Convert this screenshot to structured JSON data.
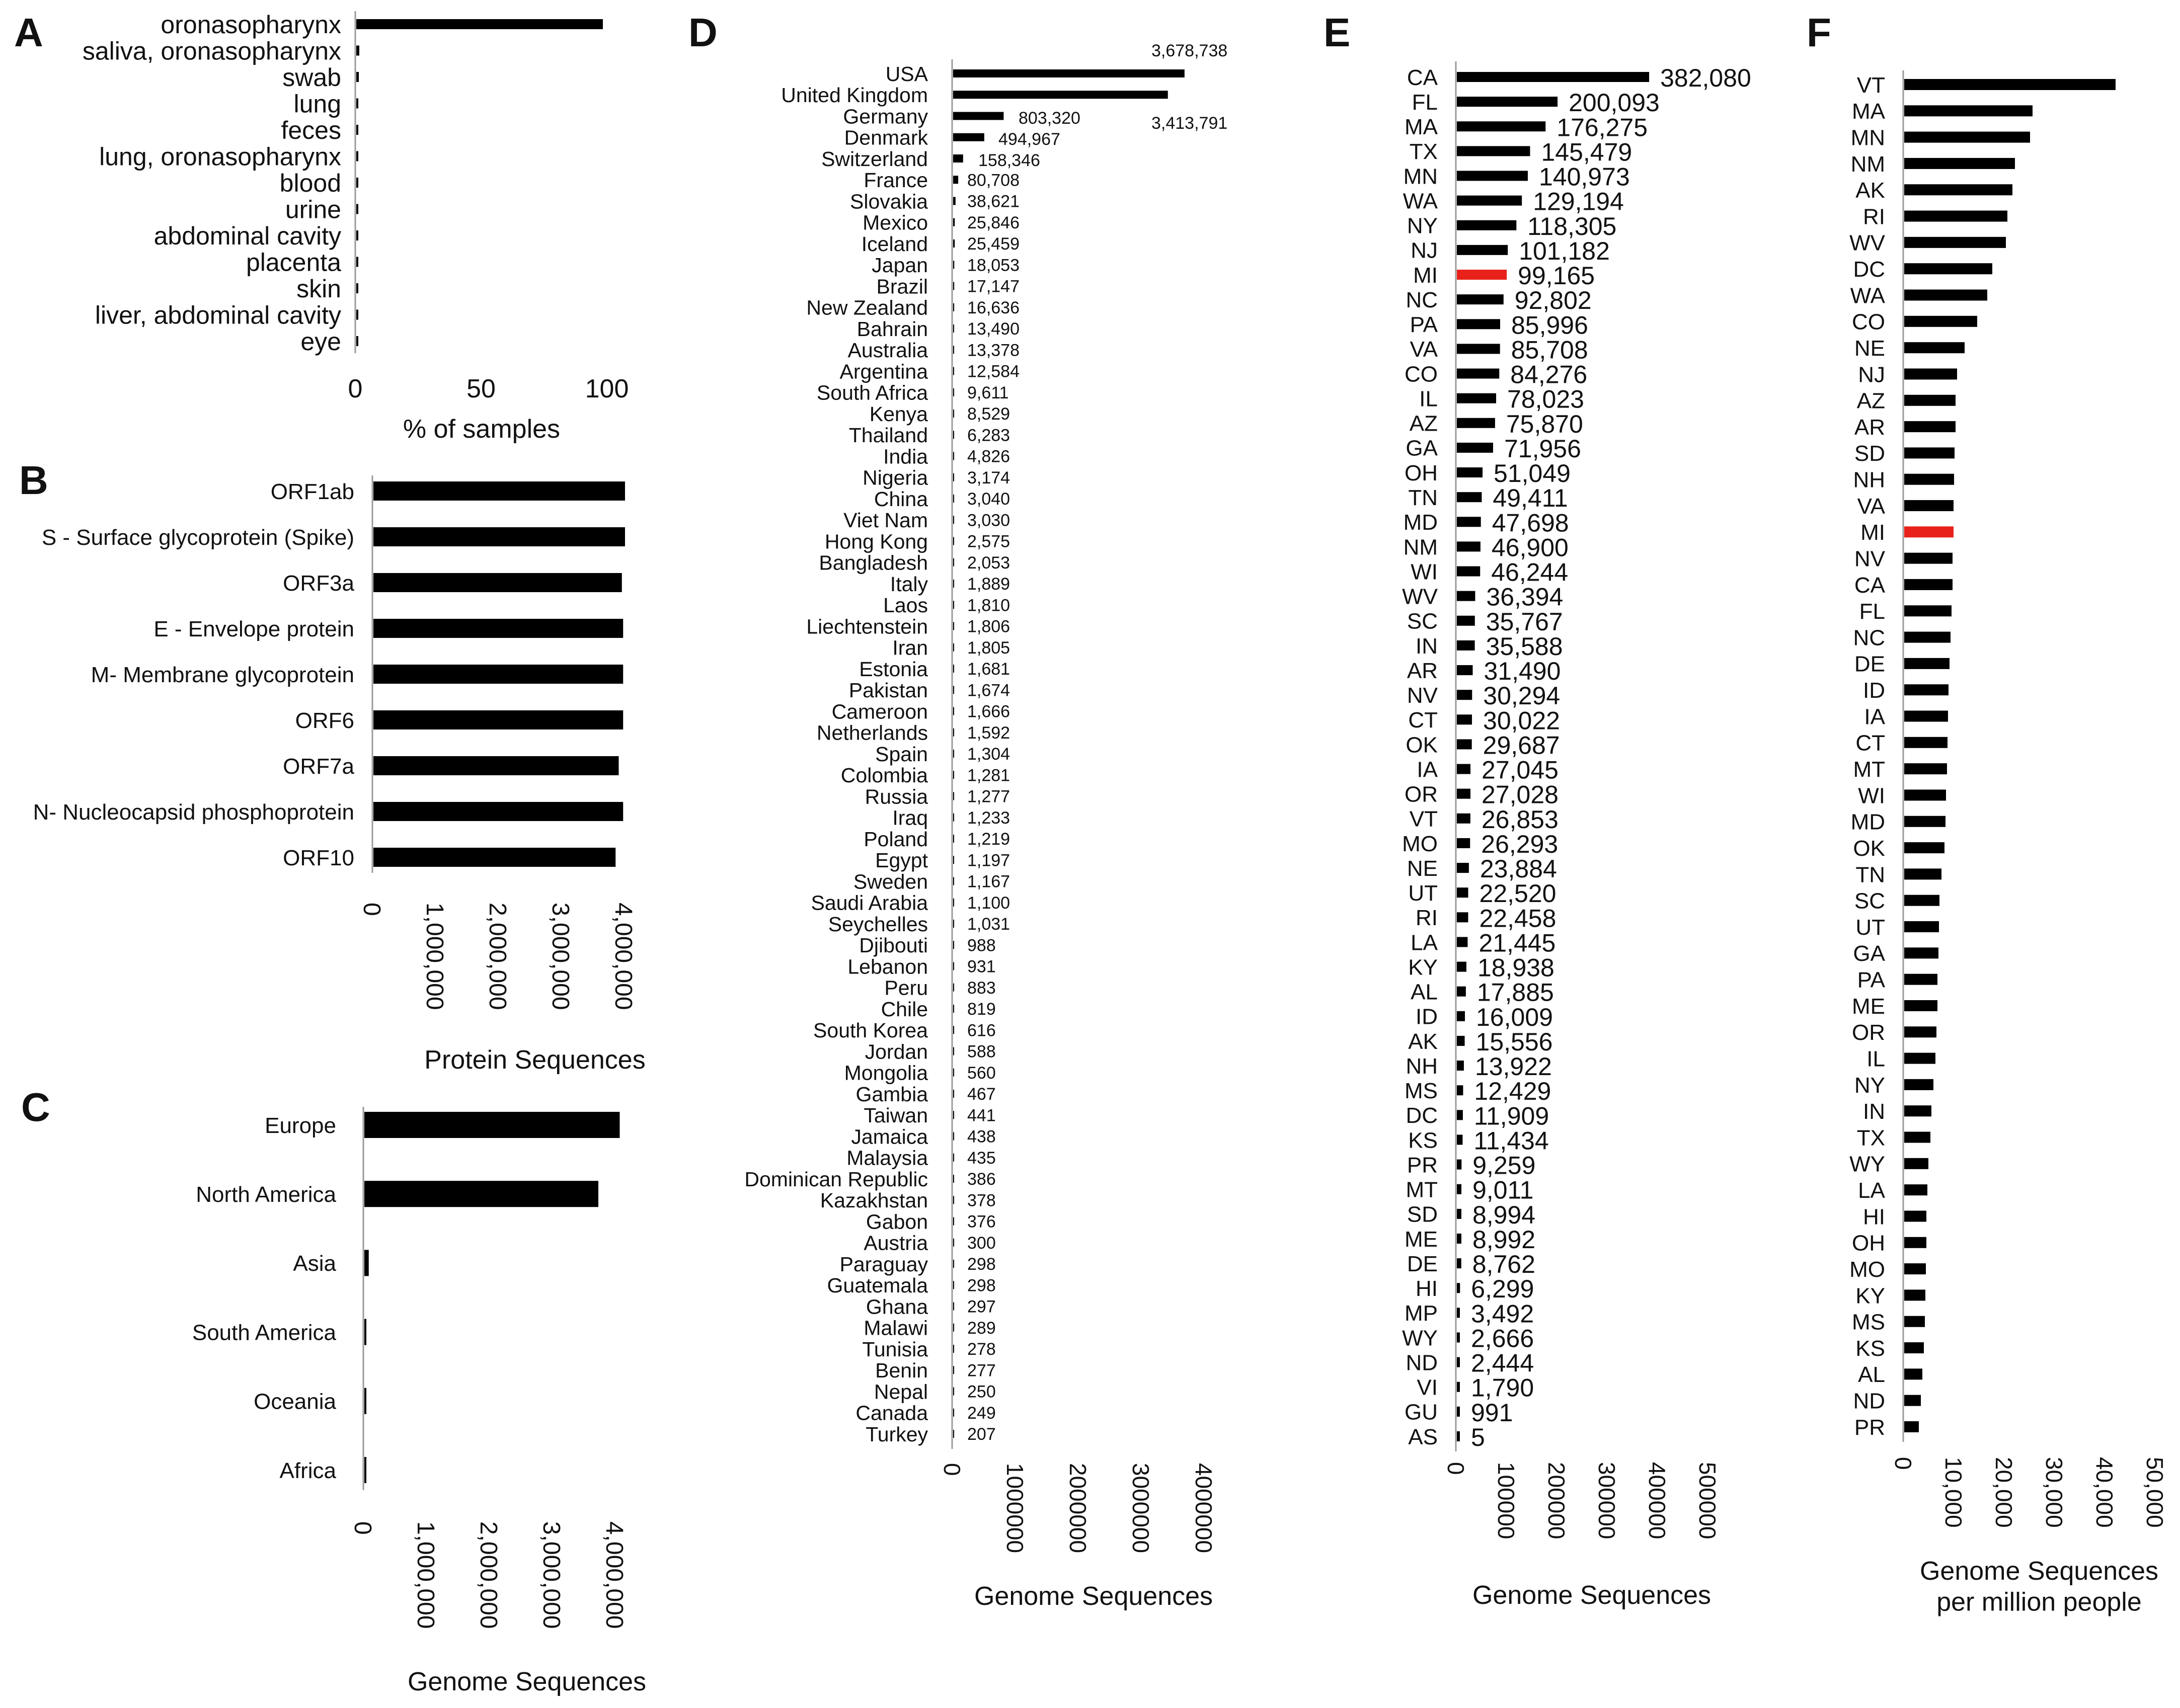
{
  "panels": {
    "A": {
      "letter": "A",
      "chart_data": {
        "type": "bar",
        "orientation": "horizontal",
        "categories": [
          "oronasopharynx",
          "saliva, oronasopharynx",
          "swab",
          "lung",
          "feces",
          "lung, oronasopharynx",
          "blood",
          "urine",
          "abdominal cavity",
          "placenta",
          "skin",
          "liver, abdominal cavity",
          "eye"
        ],
        "values": [
          98,
          1.2,
          1,
          0.1,
          0.1,
          0.1,
          0.05,
          0.05,
          0.03,
          0.03,
          0.02,
          0.02,
          0.01
        ],
        "xlim": [
          0,
          100
        ],
        "ticks": [
          0,
          50,
          100
        ],
        "tick_labels": [
          "0",
          "50",
          "100"
        ],
        "xlabel": "% of samples"
      }
    },
    "B": {
      "letter": "B",
      "chart_data": {
        "type": "bar",
        "orientation": "horizontal",
        "categories": [
          "ORF1ab",
          "S - Surface glycoprotein (Spike)",
          "ORF3a",
          "E - Envelope protein",
          "M- Membrane glycoprotein",
          "ORF6",
          "ORF7a",
          "N- Nucleocapsid phosphoprotein",
          "ORF10"
        ],
        "values": [
          4000000,
          4000000,
          3950000,
          3970000,
          3970000,
          3970000,
          3900000,
          3970000,
          3850000
        ],
        "xlim": [
          0,
          4000000
        ],
        "ticks": [
          0,
          1000000,
          2000000,
          3000000,
          4000000
        ],
        "tick_labels": [
          "0",
          "1,000,000",
          "2,000,000",
          "3,000,000",
          "4,000,000"
        ],
        "xlabel": "Protein Sequences"
      }
    },
    "C": {
      "letter": "C",
      "chart_data": {
        "type": "bar",
        "orientation": "horizontal",
        "categories": [
          "Europe",
          "North America",
          "Asia",
          "South America",
          "Oceania",
          "Africa"
        ],
        "values": [
          4060000,
          3720000,
          70000,
          30000,
          30000,
          20000
        ],
        "xlim": [
          0,
          4000000
        ],
        "ticks": [
          0,
          1000000,
          2000000,
          3000000,
          4000000
        ],
        "tick_labels": [
          "0",
          "1,000,000",
          "2,000,000",
          "3,000,000",
          "4,000,000"
        ],
        "xlabel": "Genome Sequences"
      }
    },
    "D": {
      "letter": "D",
      "chart_data": {
        "type": "bar",
        "orientation": "horizontal",
        "categories": [
          "USA",
          "United Kingdom",
          "Germany",
          "Denmark",
          "Switzerland",
          "France",
          "Slovakia",
          "Mexico",
          "Iceland",
          "Japan",
          "Brazil",
          "New Zealand",
          "Bahrain",
          "Australia",
          "Argentina",
          "South Africa",
          "Kenya",
          "Thailand",
          "India",
          "Nigeria",
          "China",
          "Viet Nam",
          "Hong Kong",
          "Bangladesh",
          "Italy",
          "Laos",
          "Liechtenstein",
          "Iran",
          "Estonia",
          "Pakistan",
          "Cameroon",
          "Netherlands",
          "Spain",
          "Colombia",
          "Russia",
          "Iraq",
          "Poland",
          "Egypt",
          "Sweden",
          "Saudi Arabia",
          "Seychelles",
          "Djibouti",
          "Lebanon",
          "Peru",
          "Chile",
          "South Korea",
          "Jordan",
          "Mongolia",
          "Gambia",
          "Taiwan",
          "Jamaica",
          "Malaysia",
          "Dominican Republic",
          "Kazakhstan",
          "Gabon",
          "Austria",
          "Paraguay",
          "Guatemala",
          "Ghana",
          "Malawi",
          "Tunisia",
          "Benin",
          "Nepal",
          "Canada",
          "Turkey"
        ],
        "values": [
          3678738,
          3413791,
          803320,
          494967,
          158346,
          80708,
          38621,
          25846,
          25459,
          18053,
          17147,
          16636,
          13490,
          13378,
          12584,
          9611,
          8529,
          6283,
          4826,
          3174,
          3040,
          3030,
          2575,
          2053,
          1889,
          1810,
          1806,
          1805,
          1681,
          1674,
          1666,
          1592,
          1304,
          1281,
          1277,
          1233,
          1219,
          1197,
          1167,
          1100,
          1031,
          988,
          931,
          883,
          819,
          616,
          588,
          560,
          467,
          441,
          438,
          435,
          386,
          378,
          376,
          300,
          298,
          298,
          297,
          289,
          278,
          277,
          250,
          249,
          207
        ],
        "value_labels": [
          "3,678,738",
          "3,413,791",
          "803,320",
          "494,967",
          "158,346",
          "80,708",
          "38,621",
          "25,846",
          "25,459",
          "18,053",
          "17,147",
          "16,636",
          "13,490",
          "13,378",
          "12,584",
          "9,611",
          "8,529",
          "6,283",
          "4,826",
          "3,174",
          "3,040",
          "3,030",
          "2,575",
          "2,053",
          "1,889",
          "1,810",
          "1,806",
          "1,805",
          "1,681",
          "1,674",
          "1,666",
          "1,592",
          "1,304",
          "1,281",
          "1,277",
          "1,233",
          "1,219",
          "1,197",
          "1,167",
          "1,100",
          "1,031",
          "988",
          "931",
          "883",
          "819",
          "616",
          "588",
          "560",
          "467",
          "441",
          "438",
          "435",
          "386",
          "378",
          "376",
          "300",
          "298",
          "298",
          "297",
          "289",
          "278",
          "277",
          "250",
          "249",
          "207"
        ],
        "xlim": [
          0,
          4000000
        ],
        "ticks": [
          0,
          1000000,
          2000000,
          3000000,
          4000000
        ],
        "tick_labels": [
          "0",
          "1000000",
          "2000000",
          "3000000",
          "4000000"
        ],
        "xlabel": "Genome Sequences"
      }
    },
    "E": {
      "letter": "E",
      "chart_data": {
        "type": "bar",
        "orientation": "horizontal",
        "categories": [
          "CA",
          "FL",
          "MA",
          "TX",
          "MN",
          "WA",
          "NY",
          "NJ",
          "MI",
          "NC",
          "PA",
          "VA",
          "CO",
          "IL",
          "AZ",
          "GA",
          "OH",
          "TN",
          "MD",
          "NM",
          "WI",
          "WV",
          "SC",
          "IN",
          "AR",
          "NV",
          "CT",
          "OK",
          "IA",
          "OR",
          "VT",
          "MO",
          "NE",
          "UT",
          "RI",
          "LA",
          "KY",
          "AL",
          "ID",
          "AK",
          "NH",
          "MS",
          "DC",
          "KS",
          "PR",
          "MT",
          "SD",
          "ME",
          "DE",
          "HI",
          "MP",
          "WY",
          "ND",
          "VI",
          "GU",
          "AS"
        ],
        "values": [
          382080,
          200093,
          176275,
          145479,
          140973,
          129194,
          118305,
          101182,
          99165,
          92802,
          85996,
          85708,
          84276,
          78023,
          75870,
          71956,
          51049,
          49411,
          47698,
          46900,
          46244,
          36394,
          35767,
          35588,
          31490,
          30294,
          30022,
          29687,
          27045,
          27028,
          26853,
          26293,
          23884,
          22520,
          22458,
          21445,
          18938,
          17885,
          16009,
          15556,
          13922,
          12429,
          11909,
          11434,
          9259,
          9011,
          8994,
          8992,
          8762,
          6299,
          3492,
          2666,
          2444,
          1790,
          991,
          5
        ],
        "value_labels": [
          "382,080",
          "200,093",
          "176,275",
          "145,479",
          "140,973",
          "129,194",
          "118,305",
          "101,182",
          "99,165",
          "92,802",
          "85,996",
          "85,708",
          "84,276",
          "78,023",
          "75,870",
          "71,956",
          "51,049",
          "49,411",
          "47,698",
          "46,900",
          "46,244",
          "36,394",
          "35,767",
          "35,588",
          "31,490",
          "30,294",
          "30,022",
          "29,687",
          "27,045",
          "27,028",
          "26,853",
          "26,293",
          "23,884",
          "22,520",
          "22,458",
          "21,445",
          "18,938",
          "17,885",
          "16,009",
          "15,556",
          "13,922",
          "12,429",
          "11,909",
          "11,434",
          "9,259",
          "9,011",
          "8,994",
          "8,992",
          "8,762",
          "6,299",
          "3,492",
          "2,666",
          "2,444",
          "1,790",
          "991",
          "5"
        ],
        "highlight": "MI",
        "highlight_color": "#e8221b",
        "xlim": [
          0,
          500000
        ],
        "ticks": [
          0,
          100000,
          200000,
          300000,
          400000,
          500000
        ],
        "tick_labels": [
          "0",
          "100000",
          "200000",
          "300000",
          "400000",
          "500000"
        ],
        "xlabel": "Genome Sequences"
      }
    },
    "F": {
      "letter": "F",
      "chart_data": {
        "type": "bar",
        "orientation": "horizontal",
        "categories": [
          "VT",
          "MA",
          "MN",
          "NM",
          "AK",
          "RI",
          "WV",
          "DC",
          "WA",
          "CO",
          "NE",
          "NJ",
          "AZ",
          "AR",
          "SD",
          "NH",
          "VA",
          "MI",
          "NV",
          "CA",
          "FL",
          "NC",
          "DE",
          "ID",
          "IA",
          "CT",
          "MT",
          "WI",
          "MD",
          "OK",
          "TN",
          "SC",
          "UT",
          "GA",
          "PA",
          "ME",
          "OR",
          "IL",
          "NY",
          "IN",
          "TX",
          "WY",
          "LA",
          "HI",
          "OH",
          "MO",
          "KY",
          "MS",
          "KS",
          "AL",
          "ND",
          "PR"
        ],
        "values": [
          42000,
          25500,
          25000,
          22000,
          21500,
          20500,
          20200,
          17500,
          16500,
          14500,
          12000,
          10500,
          10200,
          10200,
          10000,
          9900,
          9800,
          9800,
          9600,
          9600,
          9400,
          9200,
          9000,
          8800,
          8700,
          8600,
          8500,
          8300,
          8200,
          8000,
          7400,
          7000,
          6900,
          6800,
          6600,
          6600,
          6400,
          6200,
          5800,
          5400,
          5200,
          4800,
          4600,
          4400,
          4400,
          4300,
          4200,
          4100,
          3900,
          3600,
          3300,
          2900
        ],
        "highlight": "MI",
        "highlight_color": "#e8221b",
        "xlim": [
          0,
          50000
        ],
        "ticks": [
          0,
          10000,
          20000,
          30000,
          40000,
          50000
        ],
        "tick_labels": [
          "0",
          "10,000",
          "20,000",
          "30,000",
          "40,000",
          "50,000"
        ],
        "xlabel": [
          "Genome Sequences",
          "per million people"
        ]
      }
    }
  }
}
